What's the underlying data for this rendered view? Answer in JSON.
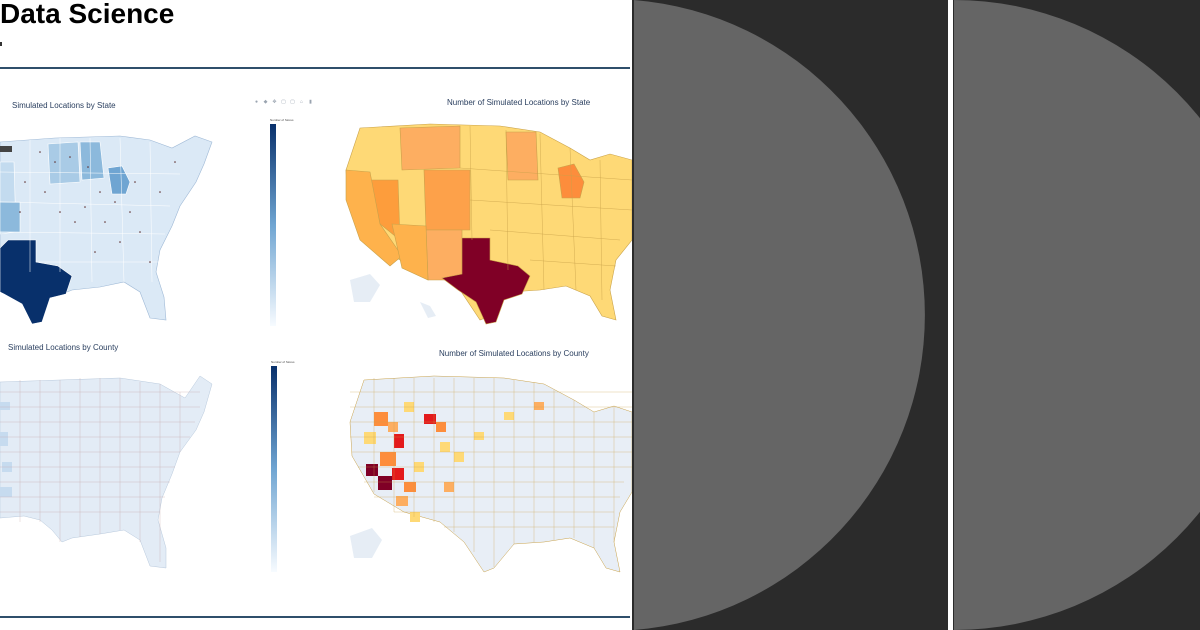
{
  "slide": {
    "title": "Data Science",
    "panels": [
      {
        "title": "Simulated Locations by State",
        "colorbar_title": "Number of Stores"
      },
      {
        "title": "Number of Simulated Locations by State"
      },
      {
        "title": "Simulated Locations by County",
        "colorbar_title": "Number of Stores"
      },
      {
        "title": "Number of Simulated Locations by County"
      }
    ],
    "toolbar_icons": [
      "camera-icon",
      "zoom-icon",
      "pan-icon",
      "zoom-in-icon",
      "zoom-out-icon",
      "reset-icon",
      "plotly-logo-icon"
    ]
  },
  "colors": {
    "rule": "#2f4f6b",
    "title_text": "#2a3f5f",
    "blue_dark": "#08306b",
    "blue_light": "#dbe9f6",
    "heat_dark": "#800026",
    "heat_mid": "#fd8d3c",
    "heat_light": "#ffeda0",
    "dark_bg": "#2b2b2b",
    "circle_fill": "#656565"
  }
}
